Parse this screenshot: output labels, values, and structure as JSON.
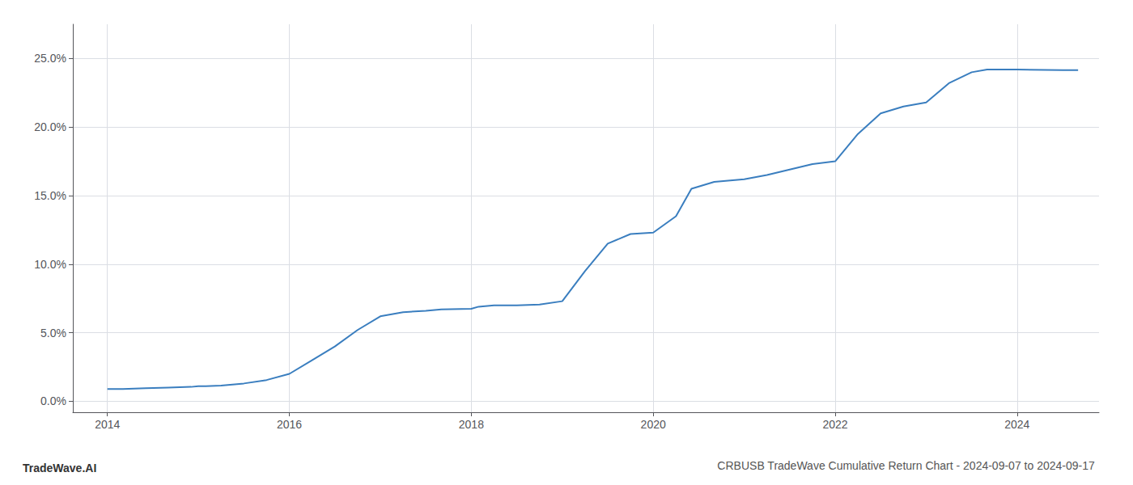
{
  "chart_data": {
    "type": "line",
    "title": "CRBUSB TradeWave Cumulative Return Chart - 2024-09-07 to 2024-09-17",
    "annotations": [
      "TradeWave.AI"
    ],
    "color": "#3a7ebf",
    "grid": true,
    "x": [
      2014.0,
      2014.17,
      2014.42,
      2014.67,
      2014.92,
      2015.0,
      2015.08,
      2015.25,
      2015.5,
      2015.75,
      2016.0,
      2016.25,
      2016.5,
      2016.75,
      2017.0,
      2017.25,
      2017.5,
      2017.67,
      2018.0,
      2018.08,
      2018.25,
      2018.5,
      2018.75,
      2019.0,
      2019.25,
      2019.5,
      2019.75,
      2020.0,
      2020.25,
      2020.42,
      2020.67,
      2021.0,
      2021.25,
      2021.5,
      2021.75,
      2022.0,
      2022.25,
      2022.5,
      2022.75,
      2023.0,
      2023.25,
      2023.5,
      2023.67,
      2023.75,
      2024.0,
      2024.5,
      2024.67
    ],
    "values": [
      0.9,
      0.9,
      0.95,
      1.0,
      1.05,
      1.1,
      1.1,
      1.15,
      1.3,
      1.55,
      2.0,
      3.0,
      4.0,
      5.2,
      6.2,
      6.5,
      6.6,
      6.7,
      6.75,
      6.9,
      7.0,
      7.0,
      7.05,
      7.3,
      9.5,
      11.5,
      12.2,
      12.3,
      13.5,
      15.5,
      16.0,
      16.2,
      16.5,
      16.9,
      17.3,
      17.5,
      19.5,
      21.0,
      21.5,
      21.8,
      23.2,
      24.0,
      24.2,
      24.2,
      24.2,
      24.15,
      24.15
    ],
    "xlim": [
      2013.62,
      2024.9
    ],
    "ylim": [
      -0.8,
      27.5
    ],
    "xticks": [
      2014,
      2016,
      2018,
      2020,
      2022,
      2024
    ],
    "yticks": [
      {
        "value": 0.0,
        "label": "0.0%"
      },
      {
        "value": 5.0,
        "label": "5.0%"
      },
      {
        "value": 10.0,
        "label": "10.0%"
      },
      {
        "value": 15.0,
        "label": "15.0%"
      },
      {
        "value": 20.0,
        "label": "20.0%"
      },
      {
        "value": 25.0,
        "label": "25.0%"
      }
    ]
  }
}
